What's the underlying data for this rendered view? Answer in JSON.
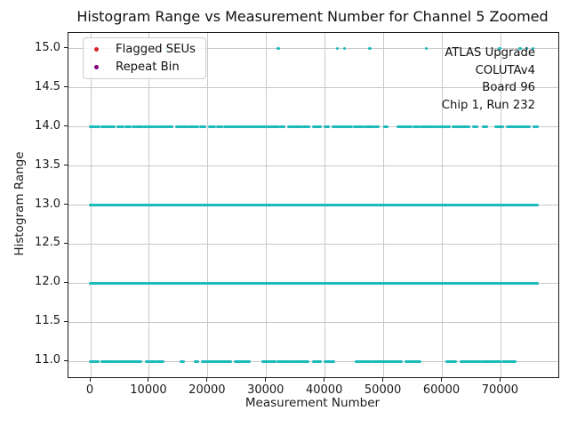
{
  "chart_data": {
    "type": "scatter",
    "title": "Histogram Range vs Measurement Number for Channel 5 Zoomed",
    "xlabel": "Measurement Number",
    "ylabel": "Histogram Range",
    "xlim": [
      -3800,
      79800
    ],
    "ylim": [
      10.8,
      15.2
    ],
    "xticks": {
      "values": [
        0,
        10000,
        20000,
        30000,
        40000,
        50000,
        60000,
        70000
      ],
      "labels": [
        "0",
        "10000",
        "20000",
        "30000",
        "40000",
        "50000",
        "60000",
        "70000"
      ]
    },
    "yticks": {
      "values": [
        11.0,
        11.5,
        12.0,
        12.5,
        13.0,
        13.5,
        14.0,
        14.5,
        15.0
      ],
      "labels": [
        "11.0",
        "11.5",
        "12.0",
        "12.5",
        "13.0",
        "13.5",
        "14.0",
        "14.5",
        "15.0"
      ]
    },
    "grid": true,
    "grid_color": "#c9c9c9",
    "spine_color": "#1a1a1a",
    "legend": {
      "position": "upper left",
      "entries": [
        {
          "label": "Flagged SEUs",
          "color": "#d62728",
          "marker": "dot"
        },
        {
          "label": "Repeat Bin",
          "color": "#800080",
          "marker": "dot"
        }
      ]
    },
    "annotation": {
      "align": "right",
      "lines": [
        "ATLAS Upgrade",
        "COLUTAv4",
        "Board 96",
        "Chip 1, Run 232"
      ]
    },
    "series": [
      {
        "name": "histogram-range-measurements",
        "color": "#1cbaba",
        "marker": "dot",
        "bands": [
          {
            "y": 15,
            "points": [
              10700,
              13000,
              32000,
              42100,
              43300,
              47600,
              57300,
              69800,
              73300,
              74400,
              75500
            ]
          },
          {
            "y": 14,
            "segments": [
              [
                0,
                1400
              ],
              [
                1900,
                3900
              ],
              [
                4600,
                5500
              ],
              [
                6100,
                6700
              ],
              [
                7300,
                8900
              ],
              [
                9200,
                11200
              ],
              [
                11600,
                13800
              ],
              [
                14700,
                16500
              ],
              [
                16900,
                18300
              ],
              [
                18800,
                19500
              ],
              [
                20300,
                21100
              ],
              [
                21700,
                22400
              ],
              [
                22900,
                25600
              ],
              [
                26100,
                27000
              ],
              [
                27400,
                29800
              ],
              [
                30100,
                32000
              ],
              [
                32400,
                33000
              ],
              [
                33800,
                36000
              ],
              [
                36400,
                37200
              ],
              [
                38000,
                39200
              ],
              [
                40000,
                40500
              ],
              [
                41400,
                44500
              ],
              [
                45000,
                46300
              ],
              [
                46700,
                48200
              ],
              [
                48600,
                49100
              ],
              [
                50200,
                50600
              ],
              [
                52400,
                54700
              ],
              [
                55200,
                55800
              ],
              [
                56200,
                58500
              ],
              [
                58800,
                61200
              ],
              [
                61800,
                63200
              ],
              [
                63500,
                64500
              ],
              [
                65300,
                65800
              ],
              [
                67100,
                67600
              ],
              [
                69100,
                70200
              ],
              [
                71100,
                74800
              ],
              [
                75600,
                76200
              ]
            ]
          },
          {
            "y": 13,
            "segments": [
              [
                0,
                76200
              ]
            ]
          },
          {
            "y": 12,
            "segments": [
              [
                0,
                76200
              ]
            ]
          },
          {
            "y": 11,
            "segments": [
              [
                0,
                1200
              ],
              [
                2000,
                4500
              ],
              [
                4800,
                8500
              ],
              [
                9500,
                11000
              ],
              [
                11300,
                12300
              ],
              [
                15400,
                15800
              ],
              [
                17900,
                18300
              ],
              [
                19100,
                21500
              ],
              [
                21800,
                23900
              ],
              [
                24700,
                27000
              ],
              [
                29400,
                31500
              ],
              [
                32000,
                34500
              ],
              [
                34800,
                37000
              ],
              [
                38000,
                39200
              ],
              [
                40000,
                41400
              ],
              [
                45300,
                47900
              ],
              [
                48300,
                50500
              ],
              [
                50800,
                52900
              ],
              [
                53900,
                56200
              ],
              [
                60800,
                62300
              ],
              [
                63300,
                66500
              ],
              [
                66800,
                69800
              ],
              [
                70300,
                72400
              ]
            ]
          }
        ]
      }
    ]
  }
}
